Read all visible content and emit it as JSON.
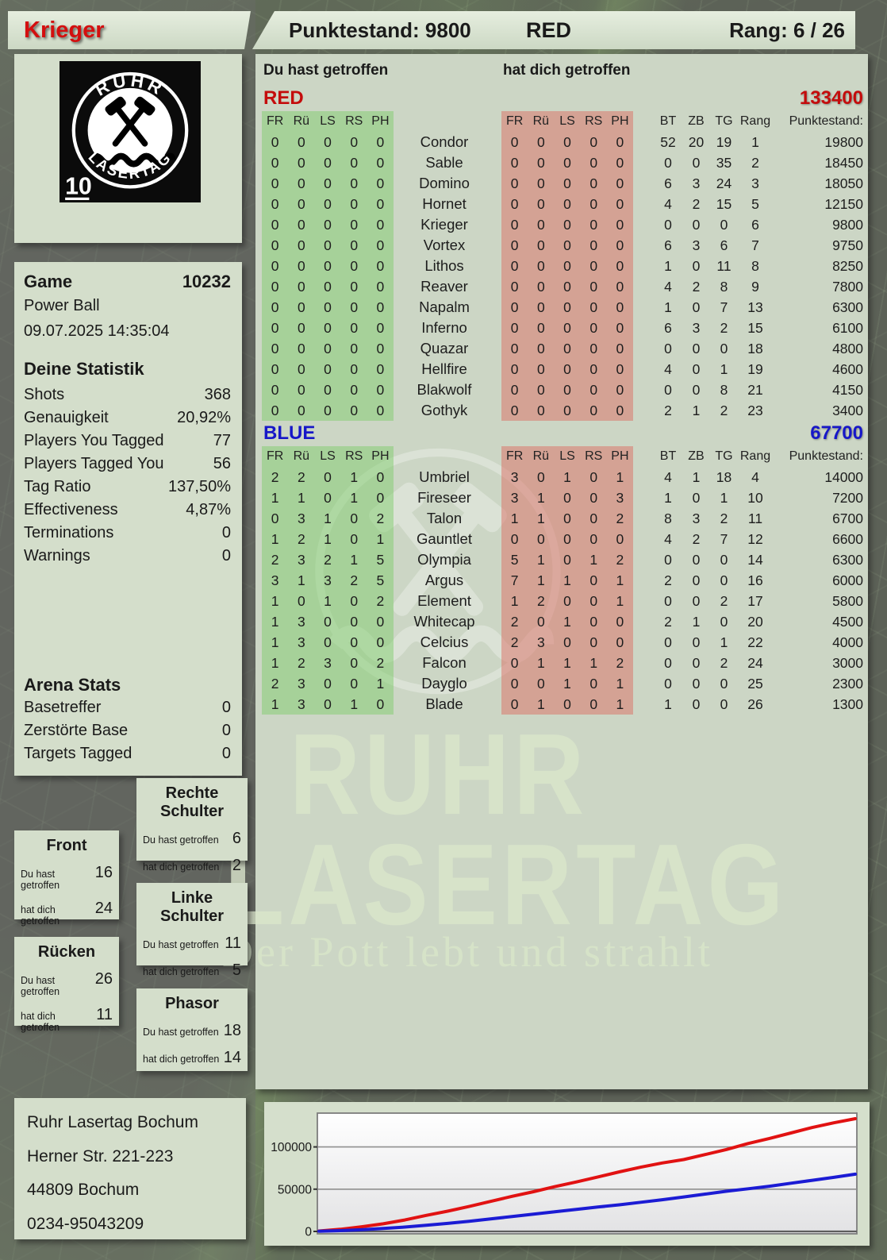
{
  "header": {
    "player": "Krieger",
    "score": "Punktestand: 9800",
    "team": "RED",
    "rank": "Rang: 6 / 26"
  },
  "logo": {
    "arc_top": "RUHR",
    "arc_bottom": "LASERTAG",
    "badge": "10"
  },
  "labels": {
    "you": "Du hast getroffen",
    "them": "hat dich getroffen"
  },
  "game": {
    "label": "Game",
    "number": "10232",
    "mode": "Power Ball",
    "datetime": "09.07.2025 14:35:04"
  },
  "stats": {
    "title": "Deine Statistik",
    "rows": [
      {
        "label": "Shots",
        "value": "368"
      },
      {
        "label": "Genauigkeit",
        "value": "20,92%"
      },
      {
        "label": "Players You Tagged",
        "value": "77"
      },
      {
        "label": "Players Tagged You",
        "value": "56"
      },
      {
        "label": "Tag Ratio",
        "value": "137,50%"
      },
      {
        "label": "Effectiveness",
        "value": "4,87%"
      },
      {
        "label": "Terminations",
        "value": "0"
      },
      {
        "label": "Warnings",
        "value": "0"
      }
    ]
  },
  "arena": {
    "title": "Arena Stats",
    "rows": [
      {
        "label": "Basetreffer",
        "value": "0"
      },
      {
        "label": "Zerstörte Base",
        "value": "0"
      },
      {
        "label": "Targets Tagged",
        "value": "0"
      }
    ]
  },
  "body_panels": [
    {
      "title": "Rechte Schulter",
      "you": "6",
      "them": "2"
    },
    {
      "title": "Front",
      "you": "16",
      "them": "24"
    },
    {
      "title": "Linke Schulter",
      "you": "11",
      "them": "5"
    },
    {
      "title": "Rücken",
      "you": "26",
      "them": "11"
    },
    {
      "title": "Phasor",
      "you": "18",
      "them": "14"
    }
  ],
  "table": {
    "hit_cols": [
      "FR",
      "Rü",
      "LS",
      "RS",
      "PH"
    ],
    "stat_cols": [
      "BT",
      "ZB",
      "TG",
      "Rang"
    ],
    "points_col": "Punktestand:",
    "teams": [
      {
        "name": "RED",
        "score": "133400",
        "color": "#c40c0c",
        "rows": [
          {
            "name": "Condor",
            "you": [
              0,
              0,
              0,
              0,
              0
            ],
            "them": [
              0,
              0,
              0,
              0,
              0
            ],
            "stats": [
              52,
              20,
              19,
              1
            ],
            "points": "19800"
          },
          {
            "name": "Sable",
            "you": [
              0,
              0,
              0,
              0,
              0
            ],
            "them": [
              0,
              0,
              0,
              0,
              0
            ],
            "stats": [
              0,
              0,
              35,
              2
            ],
            "points": "18450"
          },
          {
            "name": "Domino",
            "you": [
              0,
              0,
              0,
              0,
              0
            ],
            "them": [
              0,
              0,
              0,
              0,
              0
            ],
            "stats": [
              6,
              3,
              24,
              3
            ],
            "points": "18050"
          },
          {
            "name": "Hornet",
            "you": [
              0,
              0,
              0,
              0,
              0
            ],
            "them": [
              0,
              0,
              0,
              0,
              0
            ],
            "stats": [
              4,
              2,
              15,
              5
            ],
            "points": "12150"
          },
          {
            "name": "Krieger",
            "you": [
              0,
              0,
              0,
              0,
              0
            ],
            "them": [
              0,
              0,
              0,
              0,
              0
            ],
            "stats": [
              0,
              0,
              0,
              6
            ],
            "points": "9800"
          },
          {
            "name": "Vortex",
            "you": [
              0,
              0,
              0,
              0,
              0
            ],
            "them": [
              0,
              0,
              0,
              0,
              0
            ],
            "stats": [
              6,
              3,
              6,
              7
            ],
            "points": "9750"
          },
          {
            "name": "Lithos",
            "you": [
              0,
              0,
              0,
              0,
              0
            ],
            "them": [
              0,
              0,
              0,
              0,
              0
            ],
            "stats": [
              1,
              0,
              11,
              8
            ],
            "points": "8250"
          },
          {
            "name": "Reaver",
            "you": [
              0,
              0,
              0,
              0,
              0
            ],
            "them": [
              0,
              0,
              0,
              0,
              0
            ],
            "stats": [
              4,
              2,
              8,
              9
            ],
            "points": "7800"
          },
          {
            "name": "Napalm",
            "you": [
              0,
              0,
              0,
              0,
              0
            ],
            "them": [
              0,
              0,
              0,
              0,
              0
            ],
            "stats": [
              1,
              0,
              7,
              13
            ],
            "points": "6300"
          },
          {
            "name": "Inferno",
            "you": [
              0,
              0,
              0,
              0,
              0
            ],
            "them": [
              0,
              0,
              0,
              0,
              0
            ],
            "stats": [
              6,
              3,
              2,
              15
            ],
            "points": "6100"
          },
          {
            "name": "Quazar",
            "you": [
              0,
              0,
              0,
              0,
              0
            ],
            "them": [
              0,
              0,
              0,
              0,
              0
            ],
            "stats": [
              0,
              0,
              0,
              18
            ],
            "points": "4800"
          },
          {
            "name": "Hellfire",
            "you": [
              0,
              0,
              0,
              0,
              0
            ],
            "them": [
              0,
              0,
              0,
              0,
              0
            ],
            "stats": [
              4,
              0,
              1,
              19
            ],
            "points": "4600"
          },
          {
            "name": "Blakwolf",
            "you": [
              0,
              0,
              0,
              0,
              0
            ],
            "them": [
              0,
              0,
              0,
              0,
              0
            ],
            "stats": [
              0,
              0,
              8,
              21
            ],
            "points": "4150"
          },
          {
            "name": "Gothyk",
            "you": [
              0,
              0,
              0,
              0,
              0
            ],
            "them": [
              0,
              0,
              0,
              0,
              0
            ],
            "stats": [
              2,
              1,
              2,
              23
            ],
            "points": "3400"
          }
        ]
      },
      {
        "name": "BLUE",
        "score": "67700",
        "color": "#1717c8",
        "rows": [
          {
            "name": "Umbriel",
            "you": [
              2,
              2,
              0,
              1,
              0
            ],
            "them": [
              3,
              0,
              1,
              0,
              1
            ],
            "stats": [
              4,
              1,
              18,
              4
            ],
            "points": "14000"
          },
          {
            "name": "Fireseer",
            "you": [
              1,
              1,
              0,
              1,
              0
            ],
            "them": [
              3,
              1,
              0,
              0,
              3
            ],
            "stats": [
              1,
              0,
              1,
              10
            ],
            "points": "7200"
          },
          {
            "name": "Talon",
            "you": [
              0,
              3,
              1,
              0,
              2
            ],
            "them": [
              1,
              1,
              0,
              0,
              2
            ],
            "stats": [
              8,
              3,
              2,
              11
            ],
            "points": "6700"
          },
          {
            "name": "Gauntlet",
            "you": [
              1,
              2,
              1,
              0,
              1
            ],
            "them": [
              0,
              0,
              0,
              0,
              0
            ],
            "stats": [
              4,
              2,
              7,
              12
            ],
            "points": "6600"
          },
          {
            "name": "Olympia",
            "you": [
              2,
              3,
              2,
              1,
              5
            ],
            "them": [
              5,
              1,
              0,
              1,
              2
            ],
            "stats": [
              0,
              0,
              0,
              14
            ],
            "points": "6300"
          },
          {
            "name": "Argus",
            "you": [
              3,
              1,
              3,
              2,
              5
            ],
            "them": [
              7,
              1,
              1,
              0,
              1
            ],
            "stats": [
              2,
              0,
              0,
              16
            ],
            "points": "6000"
          },
          {
            "name": "Element",
            "you": [
              1,
              0,
              1,
              0,
              2
            ],
            "them": [
              1,
              2,
              0,
              0,
              1
            ],
            "stats": [
              0,
              0,
              2,
              17
            ],
            "points": "5800"
          },
          {
            "name": "Whitecap",
            "you": [
              1,
              3,
              0,
              0,
              0
            ],
            "them": [
              2,
              0,
              1,
              0,
              0
            ],
            "stats": [
              2,
              1,
              0,
              20
            ],
            "points": "4500"
          },
          {
            "name": "Celcius",
            "you": [
              1,
              3,
              0,
              0,
              0
            ],
            "them": [
              2,
              3,
              0,
              0,
              0
            ],
            "stats": [
              0,
              0,
              1,
              22
            ],
            "points": "4000"
          },
          {
            "name": "Falcon",
            "you": [
              1,
              2,
              3,
              0,
              2
            ],
            "them": [
              0,
              1,
              1,
              1,
              2
            ],
            "stats": [
              0,
              0,
              2,
              24
            ],
            "points": "3000"
          },
          {
            "name": "Dayglo",
            "you": [
              2,
              3,
              0,
              0,
              1
            ],
            "them": [
              0,
              0,
              1,
              0,
              1
            ],
            "stats": [
              0,
              0,
              0,
              25
            ],
            "points": "2300"
          },
          {
            "name": "Blade",
            "you": [
              1,
              3,
              0,
              1,
              0
            ],
            "them": [
              0,
              1,
              0,
              0,
              1
            ],
            "stats": [
              1,
              0,
              0,
              26
            ],
            "points": "1300"
          }
        ]
      }
    ]
  },
  "watermark": {
    "line1": "RUHR",
    "line2": "LASERTAG",
    "tagline": "Der Pott lebt und strahlt"
  },
  "address": {
    "lines": [
      "Ruhr Lasertag Bochum",
      "Herner Str. 221-223",
      "44809 Bochum",
      "0234-95043209"
    ]
  },
  "chart_data": {
    "type": "line",
    "title": "",
    "xlabel": "",
    "ylabel": "",
    "ylim": [
      0,
      140000
    ],
    "yticks": [
      0,
      50000,
      100000
    ],
    "grid": true,
    "legend": "none",
    "series": [
      {
        "name": "RED",
        "color": "#e11212",
        "values": [
          500,
          2500,
          5500,
          9000,
          13500,
          19000,
          24000,
          29500,
          35500,
          41500,
          47000,
          53000,
          58500,
          64500,
          70500,
          76000,
          81000,
          85000,
          91000,
          97000,
          104000,
          110000,
          116500,
          123000,
          128500,
          133400
        ]
      },
      {
        "name": "BLUE",
        "color": "#1b1bd4",
        "values": [
          300,
          900,
          2000,
          3500,
          5200,
          7200,
          9500,
          12000,
          14800,
          17600,
          20400,
          23200,
          26000,
          28800,
          31500,
          34500,
          37500,
          40800,
          44200,
          47500,
          50500,
          53500,
          57000,
          60500,
          64000,
          67700
        ]
      }
    ]
  }
}
